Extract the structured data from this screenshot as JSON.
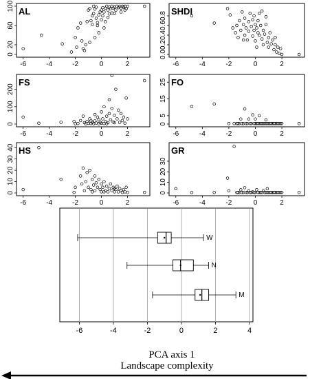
{
  "chart_data": [
    {
      "type": "scatter",
      "panel": "AL",
      "label": "AL",
      "xlim": [
        -6.3,
        3.5
      ],
      "ylim": [
        0,
        100
      ],
      "xticks": [
        "-6",
        "-4",
        "-2",
        "0",
        "2"
      ],
      "xtick_values": [
        -6,
        -4,
        -2,
        0,
        2
      ],
      "yticks": [
        "0",
        "20",
        "60",
        "100"
      ],
      "ytick_values": [
        0,
        20,
        60,
        100
      ],
      "points": [
        [
          -6,
          12
        ],
        [
          -4.6,
          40
        ],
        [
          -3,
          22
        ],
        [
          -2.3,
          5
        ],
        [
          -2,
          35
        ],
        [
          -1.8,
          55
        ],
        [
          -1.6,
          65
        ],
        [
          -1.4,
          12
        ],
        [
          -1.3,
          8
        ],
        [
          -1.2,
          20
        ],
        [
          -1.1,
          68
        ],
        [
          -1,
          92
        ],
        [
          -0.9,
          95
        ],
        [
          -0.8,
          70
        ],
        [
          -0.7,
          62
        ],
        [
          -0.7,
          80
        ],
        [
          -0.6,
          85
        ],
        [
          -0.5,
          94
        ],
        [
          -0.4,
          75
        ],
        [
          -0.4,
          98
        ],
        [
          -0.3,
          60
        ],
        [
          -0.2,
          82
        ],
        [
          -0.2,
          45
        ],
        [
          -0.1,
          88
        ],
        [
          0,
          92
        ],
        [
          0,
          72
        ],
        [
          0.1,
          97
        ],
        [
          0.2,
          88
        ],
        [
          0.2,
          55
        ],
        [
          0.3,
          96
        ],
        [
          0.4,
          100
        ],
        [
          0.5,
          92
        ],
        [
          0.5,
          77
        ],
        [
          0.6,
          98
        ],
        [
          0.7,
          95
        ],
        [
          0.8,
          100
        ],
        [
          0.9,
          96
        ],
        [
          1,
          98
        ],
        [
          1.1,
          92
        ],
        [
          1.2,
          100
        ],
        [
          1.3,
          97
        ],
        [
          1.4,
          100
        ],
        [
          1.5,
          96
        ],
        [
          1.6,
          100
        ],
        [
          1.7,
          98
        ],
        [
          1.8,
          100
        ],
        [
          1.9,
          95
        ],
        [
          2,
          100
        ],
        [
          3.3,
          100
        ],
        [
          -1.5,
          28
        ],
        [
          -0.9,
          25
        ],
        [
          -0.5,
          35
        ],
        [
          0.3,
          68
        ],
        [
          0.8,
          86
        ],
        [
          1.5,
          88
        ],
        [
          -1.9,
          15
        ],
        [
          -0.3,
          66
        ],
        [
          0.1,
          80
        ],
        [
          0.6,
          84
        ],
        [
          -0.6,
          100
        ],
        [
          1.0,
          85
        ],
        [
          1.8,
          92
        ]
      ]
    },
    {
      "type": "scatter",
      "panel": "SHDI",
      "label": "SHDI",
      "xlim": [
        -6.3,
        3.5
      ],
      "ylim": [
        0,
        1
      ],
      "xticks": [
        "-6",
        "-4",
        "-2",
        "0",
        "2"
      ],
      "xtick_values": [
        -6,
        -4,
        -2,
        0,
        2
      ],
      "yticks": [
        "0.0",
        "0.2",
        "0.4",
        "0.6",
        "0.8"
      ],
      "ytick_values": [
        0,
        0.2,
        0.4,
        0.6,
        0.8
      ],
      "points": [
        [
          -4.8,
          0.8
        ],
        [
          -3.1,
          0.65
        ],
        [
          -2.1,
          0.95
        ],
        [
          -1.9,
          0.82
        ],
        [
          -1.7,
          0.55
        ],
        [
          -1.5,
          0.45
        ],
        [
          -1.4,
          0.6
        ],
        [
          -1.3,
          0.35
        ],
        [
          -1.2,
          0.7
        ],
        [
          -1.1,
          0.5
        ],
        [
          -1,
          0.88
        ],
        [
          -0.9,
          0.62
        ],
        [
          -0.8,
          0.4
        ],
        [
          -0.8,
          0.75
        ],
        [
          -0.7,
          0.55
        ],
        [
          -0.6,
          0.3
        ],
        [
          -0.5,
          0.68
        ],
        [
          -0.5,
          0.48
        ],
        [
          -0.4,
          0.85
        ],
        [
          -0.3,
          0.58
        ],
        [
          -0.2,
          0.38
        ],
        [
          -0.2,
          0.72
        ],
        [
          -0.1,
          0.5
        ],
        [
          0,
          0.62
        ],
        [
          0,
          0.28
        ],
        [
          0.1,
          0.55
        ],
        [
          0.2,
          0.45
        ],
        [
          0.2,
          0.7
        ],
        [
          0.3,
          0.4
        ],
        [
          0.4,
          0.6
        ],
        [
          0.5,
          0.32
        ],
        [
          0.6,
          0.5
        ],
        [
          0.6,
          0.2
        ],
        [
          0.7,
          0.42
        ],
        [
          0.8,
          0.62
        ],
        [
          0.9,
          0.25
        ],
        [
          1,
          0.35
        ],
        [
          1,
          0.15
        ],
        [
          1.1,
          0.45
        ],
        [
          1.2,
          0.22
        ],
        [
          1.3,
          0.3
        ],
        [
          1.4,
          0.1
        ],
        [
          1.5,
          0.2
        ],
        [
          1.6,
          0.05
        ],
        [
          1.7,
          0.15
        ],
        [
          1.8,
          0.02
        ],
        [
          1.9,
          0.12
        ],
        [
          2,
          0.0
        ],
        [
          3.3,
          0.0
        ],
        [
          -0.1,
          0.8
        ],
        [
          0.3,
          0.85
        ],
        [
          0.8,
          0.78
        ],
        [
          0.5,
          0.9
        ],
        [
          -0.9,
          0.3
        ],
        [
          1.5,
          0.35
        ],
        [
          0.1,
          0.15
        ]
      ]
    },
    {
      "type": "scatter",
      "panel": "FS",
      "label": "FS",
      "xlim": [
        -6.3,
        3.5
      ],
      "ylim": [
        0,
        270
      ],
      "xticks": [
        "-6",
        "-4",
        "-2",
        "0",
        "2"
      ],
      "xtick_values": [
        -6,
        -4,
        -2,
        0,
        2
      ],
      "yticks": [
        "0",
        "100",
        "200"
      ],
      "ytick_values": [
        0,
        100,
        200
      ],
      "points": [
        [
          -6,
          40
        ],
        [
          -4.8,
          5
        ],
        [
          -3.1,
          10
        ],
        [
          -2.1,
          15
        ],
        [
          -2,
          2
        ],
        [
          -1.8,
          3
        ],
        [
          -1.6,
          20
        ],
        [
          -1.4,
          45
        ],
        [
          -1.3,
          8
        ],
        [
          -1.2,
          2
        ],
        [
          -1.1,
          15
        ],
        [
          -1,
          4
        ],
        [
          -0.9,
          30
        ],
        [
          -0.8,
          3
        ],
        [
          -0.7,
          10
        ],
        [
          -0.6,
          2
        ],
        [
          -0.5,
          55
        ],
        [
          -0.5,
          18
        ],
        [
          -0.4,
          6
        ],
        [
          -0.3,
          40
        ],
        [
          -0.2,
          2
        ],
        [
          -0.2,
          25
        ],
        [
          -0.1,
          10
        ],
        [
          0,
          70
        ],
        [
          0,
          5
        ],
        [
          0.1,
          30
        ],
        [
          0.2,
          3
        ],
        [
          0.2,
          100
        ],
        [
          0.3,
          15
        ],
        [
          0.4,
          45
        ],
        [
          0.5,
          8
        ],
        [
          0.6,
          140
        ],
        [
          0.6,
          60
        ],
        [
          0.7,
          25
        ],
        [
          0.8,
          280
        ],
        [
          0.8,
          90
        ],
        [
          0.9,
          12
        ],
        [
          1,
          50
        ],
        [
          1.1,
          200
        ],
        [
          1.2,
          30
        ],
        [
          1.3,
          80
        ],
        [
          1.4,
          10
        ],
        [
          1.5,
          60
        ],
        [
          1.6,
          20
        ],
        [
          1.7,
          40
        ],
        [
          1.8,
          5
        ],
        [
          1.9,
          150
        ],
        [
          2,
          30
        ],
        [
          3.3,
          250
        ],
        [
          -0.8,
          18
        ],
        [
          0.4,
          2
        ],
        [
          1.0,
          8
        ]
      ]
    },
    {
      "type": "scatter",
      "panel": "FO",
      "label": "FO",
      "xlim": [
        -6.3,
        3.5
      ],
      "ylim": [
        0,
        28
      ],
      "xticks": [
        "-6",
        "-4",
        "-2",
        "0",
        "2"
      ],
      "xtick_values": [
        -6,
        -4,
        -2,
        0,
        2
      ],
      "yticks": [
        "0",
        "5",
        "15",
        "25"
      ],
      "ytick_values": [
        0,
        5,
        15,
        25
      ],
      "points": [
        [
          -4.8,
          10.5
        ],
        [
          -3.1,
          12
        ],
        [
          -2,
          0.3
        ],
        [
          -1.6,
          0.3
        ],
        [
          -1.4,
          0.3
        ],
        [
          -1.2,
          0.3
        ],
        [
          -1.1,
          3
        ],
        [
          -1,
          0.3
        ],
        [
          -0.9,
          0.3
        ],
        [
          -0.8,
          9
        ],
        [
          -0.7,
          0.3
        ],
        [
          -0.6,
          0.3
        ],
        [
          -0.5,
          3
        ],
        [
          -0.4,
          0.3
        ],
        [
          -0.3,
          0.3
        ],
        [
          -0.2,
          5.5
        ],
        [
          -0.1,
          0.3
        ],
        [
          0,
          0.3
        ],
        [
          0,
          3
        ],
        [
          0.1,
          0.3
        ],
        [
          0.2,
          0.3
        ],
        [
          0.3,
          0.3
        ],
        [
          0.4,
          0.3
        ],
        [
          0.5,
          0.3
        ],
        [
          0.6,
          0.3
        ],
        [
          0.7,
          0.3
        ],
        [
          0.8,
          0.3
        ],
        [
          0.9,
          0.3
        ],
        [
          1,
          0.3
        ],
        [
          1.1,
          0.3
        ],
        [
          1.2,
          0.3
        ],
        [
          1.3,
          0.3
        ],
        [
          1.4,
          0.3
        ],
        [
          1.5,
          0.3
        ],
        [
          1.6,
          0.3
        ],
        [
          1.7,
          0.3
        ],
        [
          1.8,
          0.3
        ],
        [
          1.9,
          0.3
        ],
        [
          2,
          0.3
        ],
        [
          3.3,
          0.3
        ],
        [
          0.3,
          5
        ],
        [
          -1.3,
          0.3
        ],
        [
          0.8,
          2.5
        ]
      ]
    },
    {
      "type": "scatter",
      "panel": "HS",
      "label": "HS",
      "xlim": [
        -6.3,
        3.5
      ],
      "ylim": [
        0,
        42
      ],
      "xticks": [
        "-6",
        "-4",
        "-2",
        "0",
        "2"
      ],
      "xtick_values": [
        -6,
        -4,
        -2,
        0,
        2
      ],
      "yticks": [
        "0",
        "10",
        "20",
        "30",
        "40"
      ],
      "ytick_values": [
        0,
        10,
        20,
        30,
        40
      ],
      "points": [
        [
          -6,
          3
        ],
        [
          -4.8,
          40
        ],
        [
          -3.1,
          12
        ],
        [
          -2.1,
          0.5
        ],
        [
          -2,
          5
        ],
        [
          -1.6,
          15
        ],
        [
          -1.5,
          8
        ],
        [
          -1.4,
          22
        ],
        [
          -1.3,
          2
        ],
        [
          -1.2,
          10
        ],
        [
          -1.1,
          18
        ],
        [
          -1,
          5
        ],
        [
          -0.9,
          20
        ],
        [
          -0.8,
          3
        ],
        [
          -0.7,
          12
        ],
        [
          -0.6,
          7
        ],
        [
          -0.5,
          15
        ],
        [
          -0.5,
          2
        ],
        [
          -0.4,
          9
        ],
        [
          -0.3,
          5
        ],
        [
          -0.2,
          12
        ],
        [
          -0.1,
          3
        ],
        [
          0,
          8
        ],
        [
          0,
          1
        ],
        [
          0.1,
          5
        ],
        [
          0.2,
          10
        ],
        [
          0.3,
          2
        ],
        [
          0.4,
          6
        ],
        [
          0.5,
          1
        ],
        [
          0.6,
          4
        ],
        [
          0.7,
          8
        ],
        [
          0.8,
          2
        ],
        [
          0.9,
          5
        ],
        [
          1,
          1
        ],
        [
          1.1,
          3
        ],
        [
          1.2,
          6
        ],
        [
          1.3,
          1
        ],
        [
          1.4,
          4
        ],
        [
          1.5,
          2
        ],
        [
          1.6,
          0.5
        ],
        [
          1.7,
          3
        ],
        [
          1.8,
          1
        ],
        [
          1.9,
          5
        ],
        [
          2,
          0.5
        ],
        [
          3.3,
          0.5
        ],
        [
          -0.7,
          1
        ],
        [
          0.2,
          1
        ],
        [
          1.0,
          4
        ]
      ]
    },
    {
      "type": "scatter",
      "panel": "GR",
      "label": "GR",
      "xlim": [
        -6.3,
        3.5
      ],
      "ylim": [
        0,
        45
      ],
      "xticks": [
        "-6",
        "-4",
        "-2",
        "0",
        "2"
      ],
      "xtick_values": [
        -6,
        -4,
        -2,
        0,
        2
      ],
      "yticks": [
        "0",
        "10",
        "20",
        "30"
      ],
      "ytick_values": [
        0,
        10,
        20,
        30
      ],
      "points": [
        [
          -6,
          4
        ],
        [
          -4.8,
          0.5
        ],
        [
          -3.1,
          0.5
        ],
        [
          -2.1,
          14
        ],
        [
          -2,
          2
        ],
        [
          -1.6,
          44
        ],
        [
          -1.4,
          0.5
        ],
        [
          -1.2,
          0.5
        ],
        [
          -1.1,
          3
        ],
        [
          -1,
          0.5
        ],
        [
          -0.9,
          0.5
        ],
        [
          -0.8,
          5
        ],
        [
          -0.7,
          0.5
        ],
        [
          -0.6,
          0.5
        ],
        [
          -0.5,
          2
        ],
        [
          -0.4,
          0.5
        ],
        [
          -0.3,
          0.5
        ],
        [
          -0.2,
          1
        ],
        [
          -0.1,
          0.5
        ],
        [
          0,
          0.5
        ],
        [
          0.1,
          3
        ],
        [
          0.2,
          0.5
        ],
        [
          0.3,
          0.5
        ],
        [
          0.4,
          0.5
        ],
        [
          0.5,
          0.5
        ],
        [
          0.6,
          2
        ],
        [
          0.7,
          0.5
        ],
        [
          0.8,
          0.5
        ],
        [
          0.9,
          0.5
        ],
        [
          1,
          0.5
        ],
        [
          1.1,
          0.5
        ],
        [
          1.2,
          0.5
        ],
        [
          1.3,
          0.5
        ],
        [
          1.4,
          0.5
        ],
        [
          1.5,
          0.5
        ],
        [
          1.6,
          0.5
        ],
        [
          1.7,
          0.5
        ],
        [
          1.8,
          0.5
        ],
        [
          1.9,
          0.5
        ],
        [
          2,
          0.5
        ],
        [
          3.3,
          0.5
        ],
        [
          -1.3,
          0.5
        ],
        [
          0.9,
          4
        ]
      ]
    },
    {
      "type": "boxplot",
      "panel": "box",
      "orientation": "horizontal",
      "xlim": [
        -6.3,
        4
      ],
      "grid": true,
      "xticks": [
        "-6",
        "-4",
        "-2",
        "0",
        "2",
        "4"
      ],
      "xtick_values": [
        -6,
        -4,
        -2,
        0,
        2,
        4
      ],
      "xlabel": "PCA axis 1",
      "annotation": "Landscape complexity",
      "arrow_direction": "left",
      "boxes": [
        {
          "label": "W",
          "whisker_low": -6.1,
          "q1": -1.4,
          "median": -0.9,
          "q3": -0.6,
          "whisker_high": 1.3,
          "mean": -1.0
        },
        {
          "label": "N",
          "whisker_low": -3.2,
          "q1": -0.5,
          "median": -0.05,
          "q3": 0.7,
          "whisker_high": 1.6,
          "mean": -0.05
        },
        {
          "label": "M",
          "whisker_low": -1.7,
          "q1": 0.8,
          "median": 1.2,
          "q3": 1.6,
          "whisker_high": 3.2,
          "mean": 1.1
        }
      ]
    }
  ]
}
